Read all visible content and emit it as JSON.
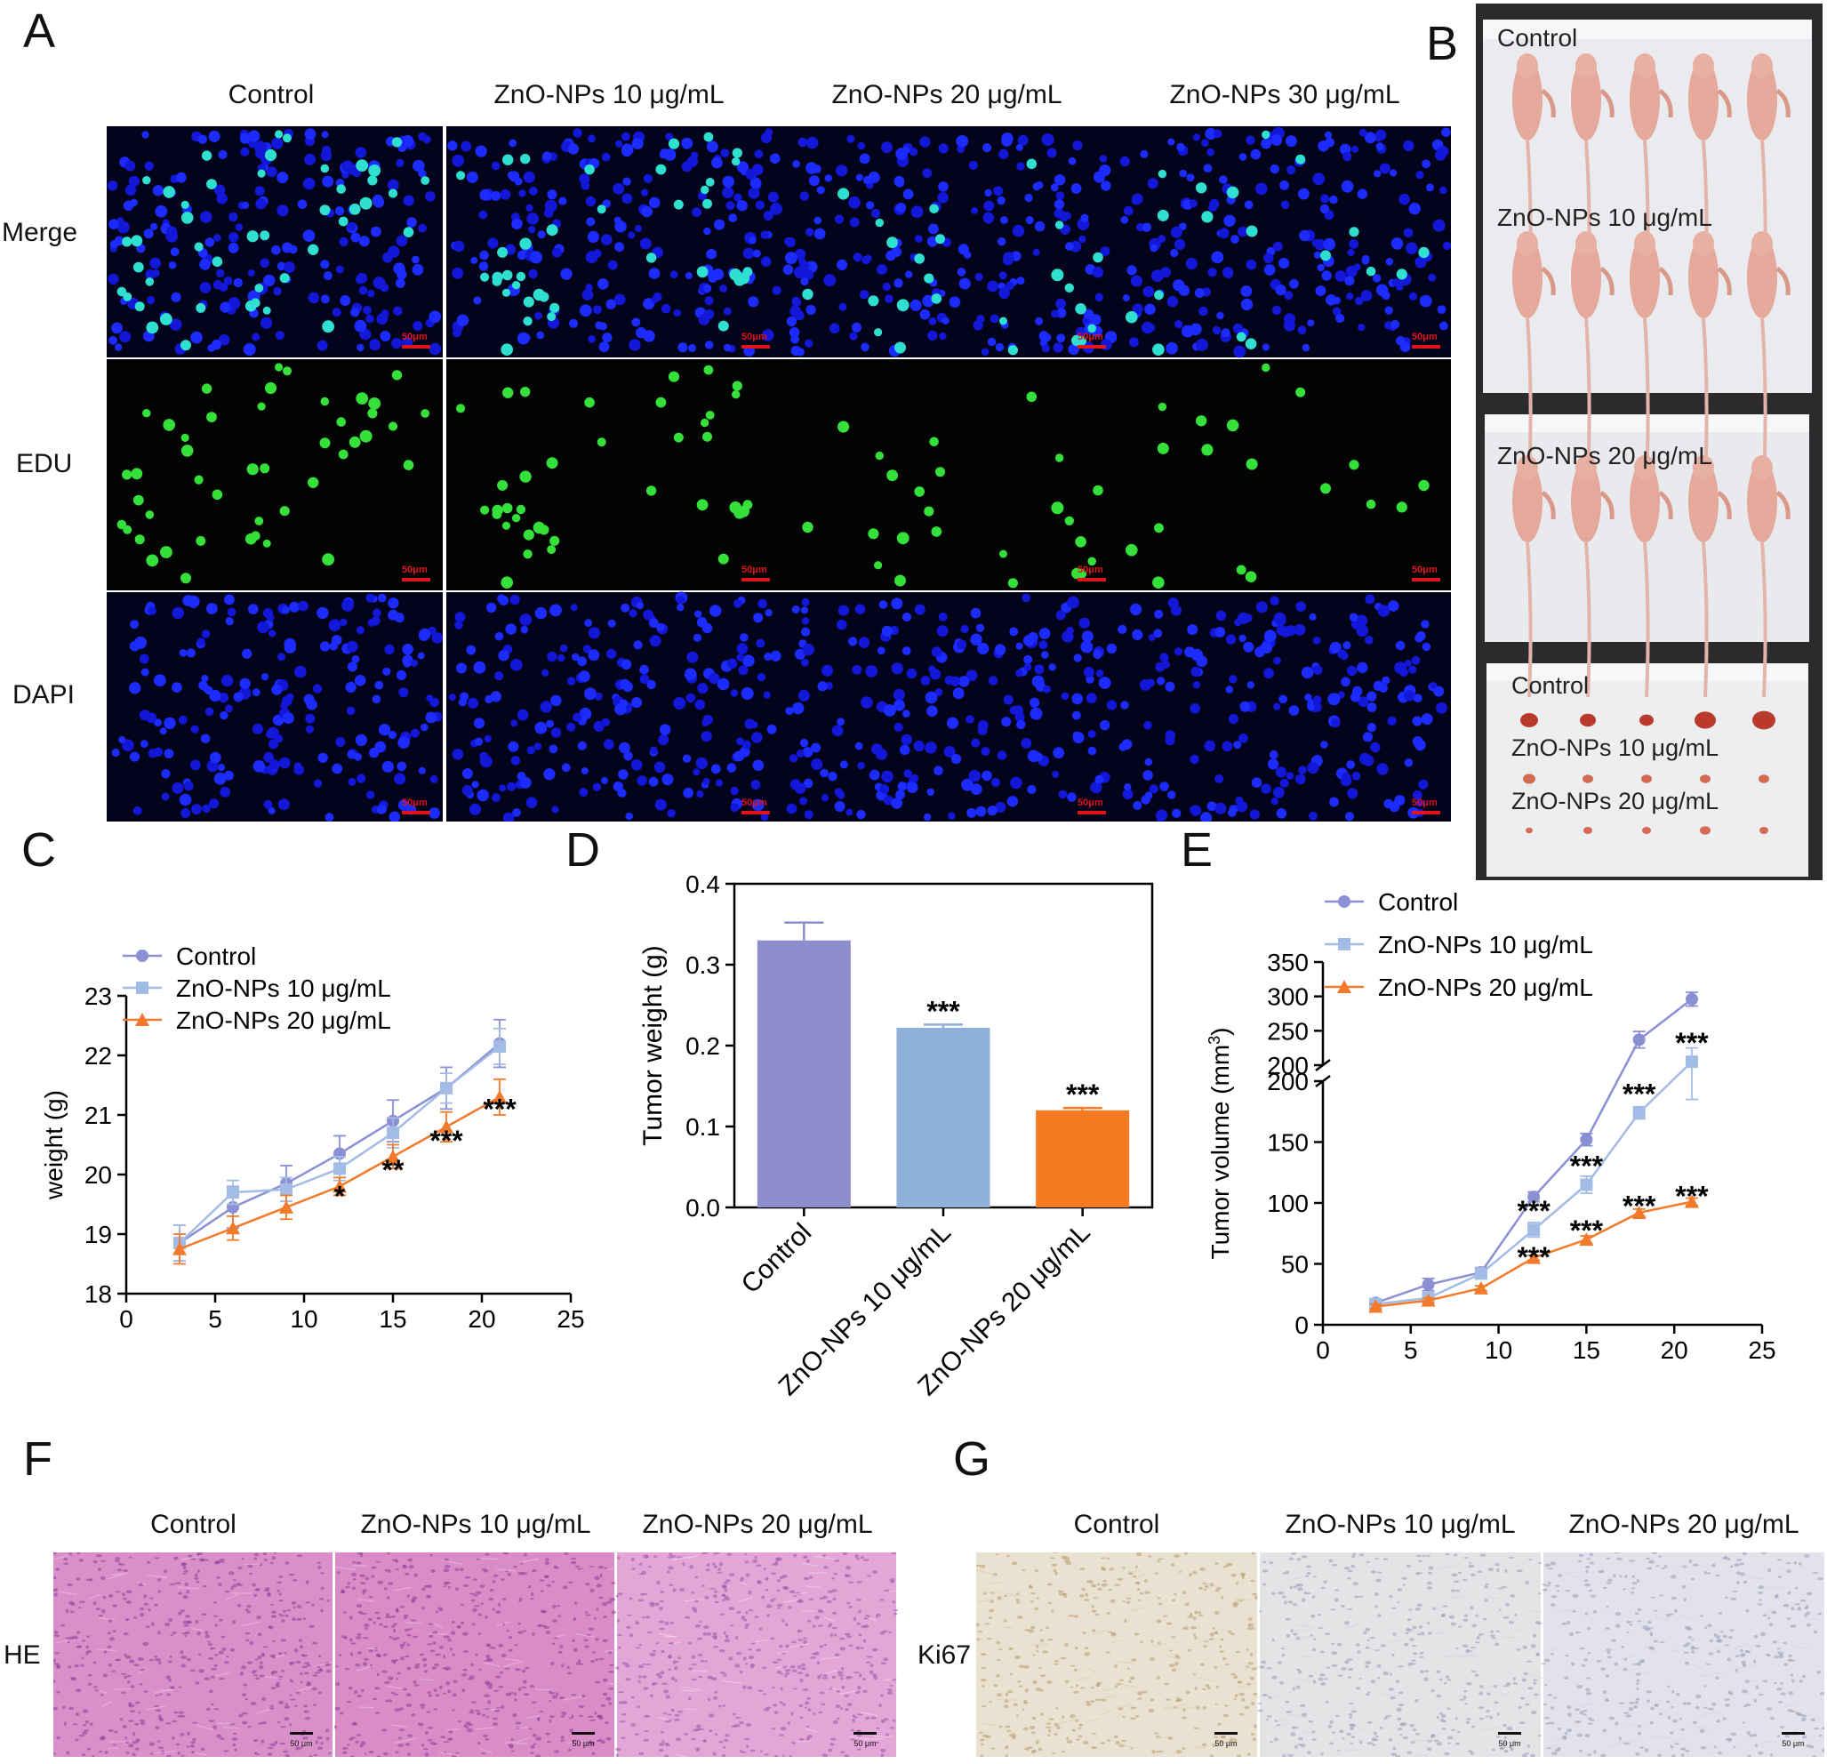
{
  "panels": {
    "A": {
      "letter": "A",
      "columns": [
        "Control",
        "ZnO-NPs 10 μg/mL",
        "ZnO-NPs 20 μg/mL",
        "ZnO-NPs 30 μg/mL"
      ],
      "rows": [
        "Merge",
        "EDU",
        "DAPI"
      ],
      "scale_bar": "50μm"
    },
    "B": {
      "letter": "B",
      "mice_labels": [
        "Control",
        "ZnO-NPs 10 μg/mL",
        "ZnO-NPs 20 μg/mL"
      ],
      "tumor_labels": [
        "Control",
        "ZnO-NPs 10 μg/mL",
        "ZnO-NPs 20 μg/mL"
      ],
      "mice_per_group": 5
    },
    "C": {
      "letter": "C"
    },
    "D": {
      "letter": "D"
    },
    "E": {
      "letter": "E"
    },
    "F": {
      "letter": "F",
      "columns": [
        "Control",
        "ZnO-NPs 10 μg/mL",
        "ZnO-NPs 20 μg/mL"
      ],
      "row": "HE",
      "scale_bar": "50 μm"
    },
    "G": {
      "letter": "G",
      "columns": [
        "Control",
        "ZnO-NPs 10 μg/mL",
        "ZnO-NPs 20 μg/mL"
      ],
      "row": "Ki67",
      "scale_bar": "50 μm"
    }
  },
  "chart_data": [
    {
      "id": "C",
      "type": "line",
      "ylabel": "weight (g)",
      "xlim": [
        0,
        25
      ],
      "ylim": [
        18,
        23
      ],
      "xticks": [
        0,
        5,
        10,
        15,
        20,
        25
      ],
      "yticks": [
        18,
        19,
        20,
        21,
        22,
        23
      ],
      "legend_position": "top-left",
      "x": [
        3,
        6,
        9,
        12,
        15,
        18,
        21
      ],
      "series": [
        {
          "name": "Control",
          "color": "#8b8fd4",
          "marker": "circle",
          "values": [
            18.85,
            19.45,
            19.85,
            20.35,
            20.9,
            21.45,
            22.2
          ],
          "errors": [
            0.3,
            0.35,
            0.3,
            0.3,
            0.35,
            0.35,
            0.4
          ]
        },
        {
          "name": "ZnO-NPs 10 μg/mL",
          "color": "#a3bce6",
          "marker": "square",
          "values": [
            18.85,
            19.7,
            19.75,
            20.1,
            20.7,
            21.45,
            22.15
          ],
          "errors": [
            0.3,
            0.2,
            0.2,
            0.2,
            0.25,
            0.25,
            0.3
          ]
        },
        {
          "name": "ZnO-NPs 20 μg/mL",
          "color": "#f47a2b",
          "marker": "triangle",
          "values": [
            18.75,
            19.1,
            19.45,
            19.8,
            20.3,
            20.8,
            21.3
          ],
          "errors": [
            0.25,
            0.2,
            0.2,
            0.15,
            0.2,
            0.25,
            0.3
          ]
        }
      ],
      "annotations": [
        {
          "x": 12,
          "y": 19.62,
          "text": "*"
        },
        {
          "x": 15,
          "y": 20.06,
          "text": "**"
        },
        {
          "x": 18,
          "y": 20.55,
          "text": "***"
        },
        {
          "x": 21,
          "y": 21.08,
          "text": "***"
        }
      ]
    },
    {
      "id": "D",
      "type": "bar",
      "ylabel": "Tumor weight (g)",
      "categories": [
        "Control",
        "ZnO-NPs 10 μg/mL",
        "ZnO-NPs 20 μg/mL"
      ],
      "values": [
        0.33,
        0.222,
        0.12
      ],
      "errors": [
        0.022,
        0.004,
        0.003
      ],
      "colors": [
        "#8c8fcc",
        "#8fb0d8",
        "#f57a22"
      ],
      "ylim": [
        0,
        0.4
      ],
      "yticks": [
        0.0,
        0.1,
        0.2,
        0.3,
        0.4
      ],
      "annotations": [
        "",
        "***",
        "***"
      ]
    },
    {
      "id": "E",
      "type": "line",
      "ylabel": "Tumor volume (mm",
      "ylabel_superscript": "3",
      "ylabel_close": ")",
      "xlim": [
        0,
        25
      ],
      "xticks": [
        0,
        5,
        10,
        15,
        20,
        25
      ],
      "ylim_lower": [
        0,
        200
      ],
      "ylim_upper": [
        200,
        350
      ],
      "yticks_lower": [
        0,
        50,
        100,
        150,
        200
      ],
      "yticks_upper": [
        200,
        250,
        300,
        350
      ],
      "legend_position": "top-left",
      "x": [
        3,
        6,
        9,
        12,
        15,
        18,
        21
      ],
      "series": [
        {
          "name": "Control",
          "color": "#8b8fd4",
          "marker": "circle",
          "values": [
            18,
            33,
            43,
            105,
            152,
            237,
            296
          ],
          "errors": [
            3,
            5,
            4,
            4,
            5,
            12,
            10
          ]
        },
        {
          "name": "ZnO-NPs 10 μg/mL",
          "color": "#a3bce6",
          "marker": "square",
          "values": [
            17,
            22,
            42,
            78,
            115,
            174,
            205
          ],
          "errors": [
            3,
            4,
            4,
            6,
            7,
            5,
            20
          ]
        },
        {
          "name": "ZnO-NPs 20 μg/mL",
          "color": "#f47a2b",
          "marker": "triangle",
          "values": [
            15,
            20,
            30,
            55,
            70,
            92,
            101
          ],
          "errors": [
            2,
            2,
            2,
            2,
            3,
            3,
            3
          ]
        }
      ],
      "annotations": [
        {
          "x": 12,
          "y": 78,
          "text": "***"
        },
        {
          "x": 15,
          "y": 115,
          "text": "***"
        },
        {
          "x": 18,
          "y": 174,
          "text": "***"
        },
        {
          "x": 21,
          "y": 205,
          "text": "***"
        },
        {
          "x": 12,
          "y": 40,
          "text": "***"
        },
        {
          "x": 15,
          "y": 62,
          "text": "***"
        },
        {
          "x": 18,
          "y": 82,
          "text": "***"
        },
        {
          "x": 21,
          "y": 90,
          "text": "***"
        }
      ]
    }
  ]
}
